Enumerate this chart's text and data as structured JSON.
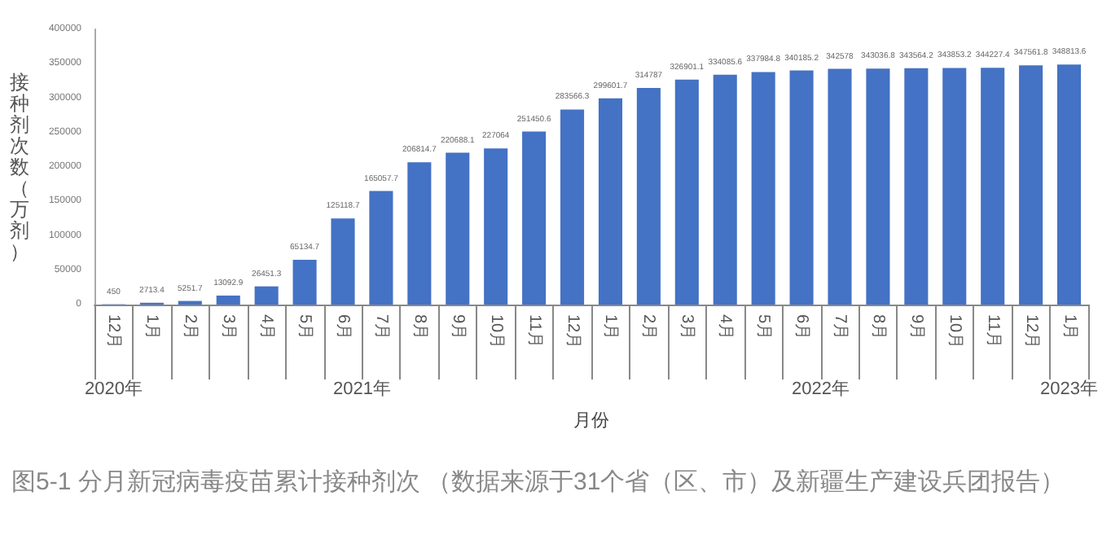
{
  "chart_data": {
    "type": "bar",
    "title": "图5-1 分月新冠病毒疫苗累计接种剂次 （数据来源于31个省（区、市）及新疆生产建设兵团报告）",
    "xlabel": "月份",
    "ylabel": "接种剂次数（万剂）",
    "categories": [
      "12月",
      "1月",
      "2月",
      "3月",
      "4月",
      "5月",
      "6月",
      "7月",
      "8月",
      "9月",
      "10月",
      "11月",
      "12月",
      "1月",
      "2月",
      "3月",
      "4月",
      "5月",
      "6月",
      "7月",
      "8月",
      "9月",
      "10月",
      "11月",
      "12月",
      "1月"
    ],
    "values": [
      450,
      2713.4,
      5251.7,
      13092.9,
      26451.3,
      65134.7,
      125118.7,
      165057.7,
      206814.7,
      220688.1,
      227064.0,
      251450.6,
      283566.3,
      299601.7,
      314787,
      326901.1,
      334085.6,
      337984.8,
      340185.2,
      342578,
      343036.8,
      343564.2,
      343853.2,
      344227.4,
      347561.8,
      348813.6
    ],
    "color": "#4472c4",
    "data_labels": true,
    "ylim": [
      0,
      400000
    ],
    "yticks": [
      0,
      50000,
      100000,
      150000,
      200000,
      250000,
      300000,
      350000,
      400000
    ],
    "annotations": [
      "2020年",
      "2021年",
      "2022年",
      "2023年"
    ],
    "grid": false
  }
}
